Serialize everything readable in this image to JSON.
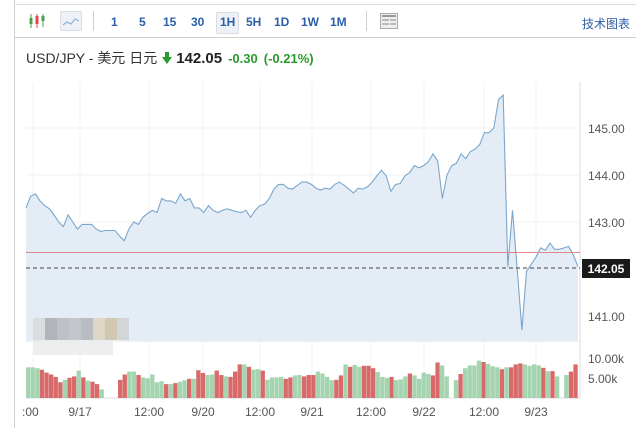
{
  "toolbar": {
    "chart_type_icons": [
      {
        "name": "candlestick-icon",
        "selected": false
      },
      {
        "name": "area-line-icon",
        "selected": true
      }
    ],
    "timeframes": [
      {
        "label": "1",
        "active": false
      },
      {
        "label": "5",
        "active": false
      },
      {
        "label": "15",
        "active": false
      },
      {
        "label": "30",
        "active": false
      },
      {
        "label": "1H",
        "active": true
      },
      {
        "label": "5H",
        "active": false
      },
      {
        "label": "1D",
        "active": false
      },
      {
        "label": "1W",
        "active": false
      },
      {
        "label": "1M",
        "active": false
      }
    ],
    "layout_icon": "layout-icon",
    "tech_chart_link": "技术图表"
  },
  "header": {
    "pair": "USD/JPY - 美元 日元",
    "direction_icon": "down-arrow-icon",
    "price": "142.05",
    "change": "-0.30",
    "change_pct": "(-0.21%)"
  },
  "colors": {
    "line": "#7aa6cc",
    "area_fill": "#e4edf6",
    "up_volume": "#a5d4b0",
    "down_volume": "#d96a6a",
    "prev_close_line": "#e08b8b",
    "change_text": "#2a9a2a",
    "link": "#2a5fa8",
    "price_tag_bg": "#1a1a1a"
  },
  "chart_data": {
    "type": "area",
    "title": "USD/JPY - 美元 日元",
    "xlabel": "",
    "ylabel": "",
    "x_tick_labels": [
      ":00",
      "9/17",
      "12:00",
      "9/20",
      "12:00",
      "9/21",
      "12:00",
      "9/22",
      "12:00",
      "9/23"
    ],
    "y_tick_labels": [
      "145.00",
      "144.00",
      "143.00",
      "141.00"
    ],
    "ylim": [
      140.5,
      146.0
    ],
    "current_price_label": "142.05",
    "previous_close_approx": 142.35,
    "grid": true,
    "series": [
      {
        "name": "USD/JPY",
        "values": [
          143.3,
          143.55,
          143.6,
          143.45,
          143.35,
          143.28,
          143.15,
          143.0,
          142.9,
          143.15,
          143.0,
          142.85,
          142.95,
          142.95,
          142.95,
          142.85,
          142.8,
          142.82,
          142.82,
          142.82,
          142.7,
          142.6,
          142.85,
          143.0,
          142.95,
          143.1,
          143.18,
          143.25,
          143.2,
          143.5,
          143.45,
          143.45,
          143.4,
          143.6,
          143.45,
          143.5,
          143.3,
          143.3,
          143.2,
          143.35,
          143.25,
          143.2,
          143.25,
          143.28,
          143.25,
          143.22,
          143.2,
          143.25,
          143.1,
          143.25,
          143.35,
          143.38,
          143.5,
          143.7,
          143.8,
          143.8,
          143.72,
          143.7,
          143.78,
          143.85,
          143.85,
          143.8,
          143.72,
          143.68,
          143.72,
          143.7,
          143.8,
          143.85,
          143.78,
          143.7,
          143.62,
          143.72,
          143.7,
          143.75,
          143.85,
          143.98,
          144.1,
          143.98,
          143.65,
          143.8,
          143.82,
          143.98,
          144.05,
          144.2,
          144.15,
          144.2,
          144.28,
          144.45,
          144.3,
          143.5,
          144.0,
          144.2,
          144.25,
          144.45,
          144.35,
          144.5,
          144.55,
          144.65,
          144.9,
          144.9,
          145.0,
          145.6,
          145.7,
          142.05,
          143.25,
          142.0,
          140.7,
          141.95,
          142.1,
          142.25,
          142.45,
          142.4,
          142.55,
          142.42,
          142.42,
          142.45,
          142.48,
          142.3,
          142.05
        ]
      }
    ],
    "volume": {
      "ylabels": [
        "10.00k",
        "5.00k"
      ],
      "bars": [
        {
          "v": 6.4,
          "c": "u"
        },
        {
          "v": 6.4,
          "c": "u"
        },
        {
          "v": 6.2,
          "c": "u"
        },
        {
          "v": 5.9,
          "c": "d"
        },
        {
          "v": 5.3,
          "c": "d"
        },
        {
          "v": 4.9,
          "c": "d"
        },
        {
          "v": 4.4,
          "c": "d"
        },
        {
          "v": 3.3,
          "c": "d"
        },
        {
          "v": 3.8,
          "c": "u"
        },
        {
          "v": 4.2,
          "c": "d"
        },
        {
          "v": 4.5,
          "c": "d"
        },
        {
          "v": 5.7,
          "c": "u"
        },
        {
          "v": 4.3,
          "c": "d"
        },
        {
          "v": 3.6,
          "c": "u"
        },
        {
          "v": 3.4,
          "c": "d"
        },
        {
          "v": 2.9,
          "c": "d"
        },
        {
          "v": 1.8,
          "c": "u"
        },
        {
          "v": 0,
          "c": "gap"
        },
        {
          "v": 0,
          "c": "gap"
        },
        {
          "v": 0,
          "c": "gap"
        },
        {
          "v": 3.8,
          "c": "d"
        },
        {
          "v": 4.9,
          "c": "d"
        },
        {
          "v": 5.5,
          "c": "u"
        },
        {
          "v": 5.5,
          "c": "u"
        },
        {
          "v": 4.8,
          "c": "d"
        },
        {
          "v": 4.3,
          "c": "u"
        },
        {
          "v": 4.1,
          "c": "u"
        },
        {
          "v": 4.9,
          "c": "u"
        },
        {
          "v": 3.3,
          "c": "u"
        },
        {
          "v": 3.5,
          "c": "u"
        },
        {
          "v": 2.9,
          "c": "d"
        },
        {
          "v": 2.9,
          "c": "u"
        },
        {
          "v": 3.1,
          "c": "d"
        },
        {
          "v": 3.4,
          "c": "u"
        },
        {
          "v": 3.7,
          "c": "u"
        },
        {
          "v": 4.0,
          "c": "d"
        },
        {
          "v": 4.0,
          "c": "u"
        },
        {
          "v": 5.8,
          "c": "d"
        },
        {
          "v": 5.2,
          "c": "d"
        },
        {
          "v": 4.8,
          "c": "u"
        },
        {
          "v": 4.9,
          "c": "u"
        },
        {
          "v": 5.7,
          "c": "d"
        },
        {
          "v": 4.8,
          "c": "d"
        },
        {
          "v": 4.5,
          "c": "u"
        },
        {
          "v": 4.4,
          "c": "d"
        },
        {
          "v": 5.5,
          "c": "d"
        },
        {
          "v": 7.0,
          "c": "d"
        },
        {
          "v": 7.0,
          "c": "u"
        },
        {
          "v": 6.5,
          "c": "d"
        },
        {
          "v": 5.9,
          "c": "u"
        },
        {
          "v": 6.0,
          "c": "u"
        },
        {
          "v": 5.7,
          "c": "d"
        },
        {
          "v": 3.8,
          "c": "u"
        },
        {
          "v": 4.3,
          "c": "u"
        },
        {
          "v": 4.3,
          "c": "u"
        },
        {
          "v": 4.4,
          "c": "u"
        },
        {
          "v": 4.0,
          "c": "d"
        },
        {
          "v": 4.3,
          "c": "d"
        },
        {
          "v": 4.7,
          "c": "u"
        },
        {
          "v": 4.8,
          "c": "u"
        },
        {
          "v": 4.5,
          "c": "d"
        },
        {
          "v": 4.8,
          "c": "d"
        },
        {
          "v": 4.8,
          "c": "d"
        },
        {
          "v": 5.5,
          "c": "u"
        },
        {
          "v": 5.1,
          "c": "u"
        },
        {
          "v": 4.4,
          "c": "u"
        },
        {
          "v": 3.7,
          "c": "u"
        },
        {
          "v": 3.8,
          "c": "d"
        },
        {
          "v": 4.7,
          "c": "d"
        },
        {
          "v": 7.0,
          "c": "u"
        },
        {
          "v": 6.5,
          "c": "d"
        },
        {
          "v": 6.9,
          "c": "u"
        },
        {
          "v": 6.5,
          "c": "u"
        },
        {
          "v": 6.7,
          "c": "d"
        },
        {
          "v": 6.7,
          "c": "d"
        },
        {
          "v": 6.2,
          "c": "d"
        },
        {
          "v": 5.4,
          "c": "u"
        },
        {
          "v": 4.4,
          "c": "u"
        },
        {
          "v": 4.2,
          "c": "u"
        },
        {
          "v": 4.4,
          "c": "d"
        },
        {
          "v": 3.7,
          "c": "u"
        },
        {
          "v": 3.9,
          "c": "u"
        },
        {
          "v": 4.5,
          "c": "u"
        },
        {
          "v": 5.1,
          "c": "d"
        },
        {
          "v": 4.7,
          "c": "u"
        },
        {
          "v": 4.0,
          "c": "u"
        },
        {
          "v": 5.3,
          "c": "u"
        },
        {
          "v": 5.0,
          "c": "u"
        },
        {
          "v": 4.7,
          "c": "d"
        },
        {
          "v": 7.4,
          "c": "d"
        },
        {
          "v": 6.8,
          "c": "u"
        },
        {
          "v": 4.5,
          "c": "u"
        },
        {
          "v": 0,
          "c": "gap"
        },
        {
          "v": 3.7,
          "c": "u"
        },
        {
          "v": 5.0,
          "c": "d"
        },
        {
          "v": 6.2,
          "c": "u"
        },
        {
          "v": 6.8,
          "c": "u"
        },
        {
          "v": 6.8,
          "c": "u"
        },
        {
          "v": 7.8,
          "c": "u"
        },
        {
          "v": 7.5,
          "c": "d"
        },
        {
          "v": 7.1,
          "c": "u"
        },
        {
          "v": 6.6,
          "c": "u"
        },
        {
          "v": 6.4,
          "c": "u"
        },
        {
          "v": 6.0,
          "c": "d"
        },
        {
          "v": 6.4,
          "c": "u"
        },
        {
          "v": 6.4,
          "c": "d"
        },
        {
          "v": 7.0,
          "c": "d"
        },
        {
          "v": 7.2,
          "c": "d"
        },
        {
          "v": 7.0,
          "c": "u"
        },
        {
          "v": 6.7,
          "c": "u"
        },
        {
          "v": 7.0,
          "c": "u"
        },
        {
          "v": 6.8,
          "c": "u"
        },
        {
          "v": 6.3,
          "c": "d"
        },
        {
          "v": 5.6,
          "c": "u"
        },
        {
          "v": 5.6,
          "c": "d"
        },
        {
          "v": 4.5,
          "c": "u"
        },
        {
          "v": 0,
          "c": "gap"
        },
        {
          "v": 4.8,
          "c": "u"
        },
        {
          "v": 5.5,
          "c": "d"
        },
        {
          "v": 7.0,
          "c": "d"
        }
      ]
    }
  }
}
